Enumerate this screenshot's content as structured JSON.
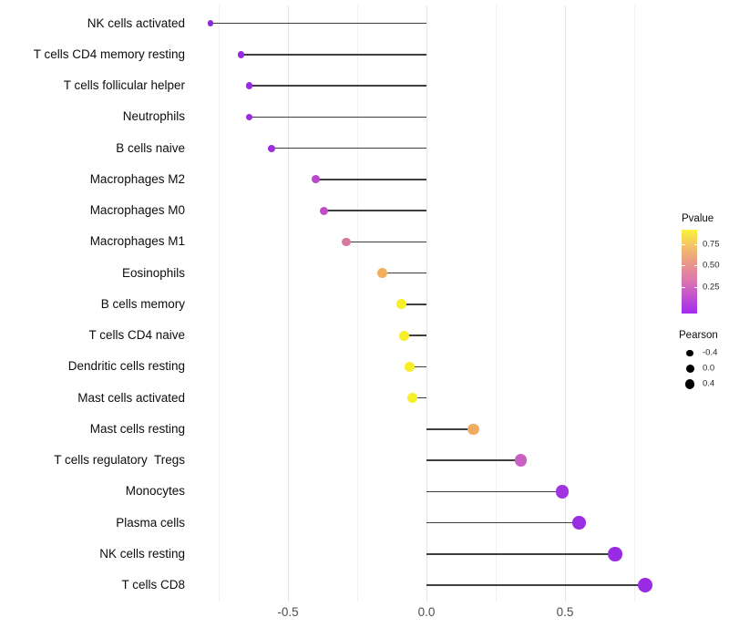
{
  "chart_data": {
    "type": "lollipop",
    "title": "",
    "xlabel": "",
    "ylabel": "",
    "xlim": [
      -0.87,
      0.87
    ],
    "grid": "vertical-only",
    "x_axis": {
      "major_ticks": [
        -0.5,
        0.0,
        0.5
      ],
      "major_tick_labels": [
        "-0.5",
        "0.0",
        "0.5"
      ],
      "minor_ticks": [
        -0.75,
        -0.25,
        0.25,
        0.75
      ]
    },
    "rows": [
      {
        "label": "NK cells activated",
        "pearson": -0.78,
        "color": "#8f28d6"
      },
      {
        "label": "T cells CD4 memory resting",
        "pearson": -0.67,
        "color": "#992be2"
      },
      {
        "label": "T cells follicular helper",
        "pearson": -0.64,
        "color": "#992be2"
      },
      {
        "label": "Neutrophils",
        "pearson": -0.64,
        "color": "#992be2"
      },
      {
        "label": "B cells naive",
        "pearson": -0.56,
        "color": "#9c2fe0"
      },
      {
        "label": "Macrophages M2",
        "pearson": -0.4,
        "color": "#bb49cb"
      },
      {
        "label": "Macrophages M0",
        "pearson": -0.37,
        "color": "#bf4ec4"
      },
      {
        "label": "Macrophages M1",
        "pearson": -0.29,
        "color": "#d57a9e"
      },
      {
        "label": "Eosinophils",
        "pearson": -0.16,
        "color": "#f0b05e"
      },
      {
        "label": "B cells memory",
        "pearson": -0.09,
        "color": "#f7ef27"
      },
      {
        "label": "T cells CD4 naive",
        "pearson": -0.08,
        "color": "#f7ef27"
      },
      {
        "label": "Dendritic cells resting",
        "pearson": -0.06,
        "color": "#f7ef27"
      },
      {
        "label": "Mast cells activated",
        "pearson": -0.05,
        "color": "#f7ef27"
      },
      {
        "label": "Mast cells resting",
        "pearson": 0.17,
        "color": "#efac62"
      },
      {
        "label": "T cells regulatory  Tregs",
        "pearson": 0.34,
        "color": "#cb60c3"
      },
      {
        "label": "Monocytes",
        "pearson": 0.49,
        "color": "#a134df"
      },
      {
        "label": "Plasma cells",
        "pearson": 0.55,
        "color": "#9c2ee1"
      },
      {
        "label": "NK cells resting",
        "pearson": 0.68,
        "color": "#992be3"
      },
      {
        "label": "T cells CD8",
        "pearson": 0.79,
        "color": "#9a2ae4"
      }
    ],
    "legend": {
      "pvalue": {
        "title": "Pvalue",
        "tick_labels": [
          "0.75",
          "0.50",
          "0.25"
        ],
        "gradient_stops": [
          "#fbf33c",
          "#f3c067",
          "#ea9789",
          "#dc78ac",
          "#c251d0",
          "#a32bf0"
        ],
        "position": "right"
      },
      "pearson": {
        "title": "Pearson",
        "sizes": [
          {
            "label": "-0.4",
            "diameter": 7.3
          },
          {
            "label": "0.0",
            "diameter": 9.0
          },
          {
            "label": "0.4",
            "diameter": 10.7
          }
        ]
      }
    }
  }
}
